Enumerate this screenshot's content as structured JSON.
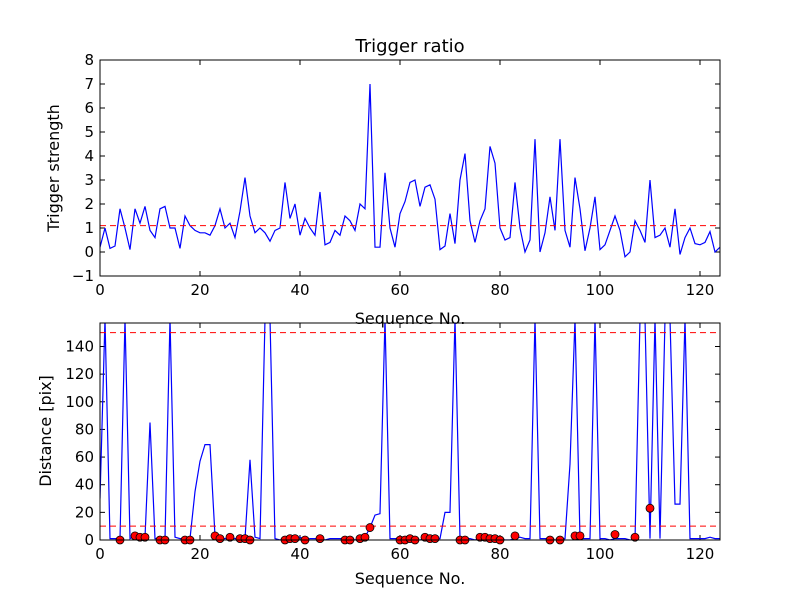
{
  "chart_data": [
    {
      "type": "line",
      "title": "Trigger ratio",
      "xlabel": "Sequence No.",
      "ylabel": "Trigger strength",
      "xlim": [
        0,
        124
      ],
      "ylim": [
        -1,
        8
      ],
      "x_ticks": [
        "0",
        "20",
        "40",
        "60",
        "80",
        "100",
        "120"
      ],
      "y_ticks": [
        "−1",
        "0",
        "1",
        "2",
        "3",
        "4",
        "5",
        "6",
        "7",
        "8"
      ],
      "threshold": 1.1,
      "line_color": "#0000ff",
      "threshold_color": "#ff0000",
      "series": [
        {
          "x": [
            0,
            1,
            2,
            3,
            4,
            5,
            6,
            7,
            8,
            9,
            10,
            11,
            12,
            13,
            14,
            15,
            16,
            17,
            18,
            19,
            20,
            21,
            22,
            23,
            24,
            25,
            26,
            27,
            28,
            29,
            30,
            31,
            32,
            33,
            34,
            35,
            36,
            37,
            38,
            39,
            40,
            41,
            42,
            43,
            44,
            45,
            46,
            47,
            48,
            49,
            50,
            51,
            52,
            53,
            54,
            55,
            56,
            57,
            58,
            59,
            60,
            61,
            62,
            63,
            64,
            65,
            66,
            67,
            68,
            69,
            70,
            71,
            72,
            73,
            74,
            75,
            76,
            77,
            78,
            79,
            80,
            81,
            82,
            83,
            84,
            85,
            86,
            87,
            88,
            89,
            90,
            91,
            92,
            93,
            94,
            95,
            96,
            97,
            98,
            99,
            100,
            101,
            102,
            103,
            104,
            105,
            106,
            107,
            108,
            109,
            110,
            111,
            112,
            113,
            114,
            115,
            116,
            117,
            118,
            119,
            120,
            121,
            122,
            123,
            124
          ],
          "y": [
            0.2,
            1.0,
            0.15,
            0.25,
            1.8,
            1.0,
            0.1,
            1.8,
            1.2,
            1.9,
            0.9,
            0.6,
            1.8,
            1.9,
            1.0,
            1.0,
            0.15,
            1.5,
            1.1,
            0.9,
            0.8,
            0.8,
            0.7,
            1.1,
            1.8,
            1.0,
            1.2,
            0.6,
            1.7,
            3.1,
            1.5,
            0.8,
            1.0,
            0.8,
            0.45,
            0.9,
            1.0,
            2.9,
            1.4,
            2.0,
            0.7,
            1.4,
            1.0,
            0.7,
            2.5,
            0.3,
            0.4,
            0.9,
            0.7,
            1.5,
            1.3,
            0.9,
            2.0,
            1.8,
            7.0,
            0.2,
            0.2,
            3.3,
            1.0,
            0.2,
            1.6,
            2.1,
            2.9,
            3.0,
            1.9,
            2.7,
            2.8,
            2.2,
            0.1,
            0.25,
            1.6,
            0.35,
            3.0,
            4.1,
            1.3,
            0.4,
            1.3,
            1.8,
            4.4,
            3.7,
            1.0,
            0.5,
            0.6,
            2.9,
            1.0,
            0.0,
            0.5,
            4.7,
            0.0,
            0.8,
            2.3,
            0.9,
            4.7,
            0.9,
            0.2,
            3.1,
            1.8,
            0.05,
            1.0,
            2.3,
            0.1,
            0.3,
            0.9,
            1.5,
            0.9,
            -0.2,
            0.0,
            1.3,
            0.9,
            0.4,
            3.0,
            0.6,
            0.7,
            1.0,
            0.2,
            1.8,
            -0.1,
            0.6,
            1.0,
            0.35,
            0.3,
            0.4,
            0.85,
            0.0,
            0.2
          ]
        }
      ]
    },
    {
      "type": "line",
      "title": "",
      "xlabel": "Sequence No.",
      "ylabel": "Distance [pix]",
      "xlim": [
        0,
        124
      ],
      "ylim": [
        0,
        157
      ],
      "x_ticks": [
        "0",
        "20",
        "40",
        "60",
        "80",
        "100",
        "120"
      ],
      "y_ticks": [
        "0",
        "20",
        "40",
        "60",
        "80",
        "100",
        "120",
        "140"
      ],
      "thresholds": [
        10,
        150
      ],
      "line_color": "#0000ff",
      "threshold_color": "#ff0000",
      "marker_color": "#ff0000",
      "series": [
        {
          "x": [
            0,
            1,
            2,
            3,
            4,
            5,
            6,
            7,
            8,
            9,
            10,
            11,
            12,
            13,
            14,
            15,
            16,
            17,
            18,
            19,
            20,
            21,
            22,
            23,
            24,
            25,
            26,
            27,
            28,
            29,
            30,
            31,
            32,
            33,
            34,
            35,
            36,
            37,
            38,
            39,
            40,
            41,
            42,
            43,
            44,
            45,
            46,
            47,
            48,
            49,
            50,
            51,
            52,
            53,
            54,
            55,
            56,
            57,
            58,
            59,
            60,
            61,
            62,
            63,
            64,
            65,
            66,
            67,
            68,
            69,
            70,
            71,
            72,
            73,
            74,
            75,
            76,
            77,
            78,
            79,
            80,
            81,
            82,
            83,
            84,
            85,
            86,
            87,
            88,
            89,
            90,
            91,
            92,
            93,
            94,
            95,
            96,
            97,
            98,
            99,
            100,
            101,
            102,
            103,
            104,
            105,
            106,
            107,
            108,
            109,
            110,
            111,
            112,
            113,
            114,
            115,
            116,
            117,
            118,
            119,
            120,
            121,
            122,
            123,
            124
          ],
          "y": [
            30,
            160,
            1,
            1,
            1,
            160,
            1,
            3,
            2,
            2,
            85,
            1,
            1,
            1,
            160,
            2,
            1,
            1,
            1,
            35,
            57,
            69,
            69,
            3,
            1,
            1,
            2,
            1,
            1,
            1,
            58,
            2,
            1,
            160,
            160,
            1,
            0,
            1,
            1,
            2,
            2,
            0,
            1,
            1,
            1,
            0,
            1,
            1,
            1,
            1,
            1,
            0,
            1,
            2,
            9,
            18,
            19,
            160,
            1,
            1,
            1,
            1,
            1,
            0,
            0,
            1,
            2,
            1,
            1,
            20,
            20,
            160,
            1,
            1,
            1,
            0,
            1,
            2,
            1,
            1,
            1,
            0,
            0,
            1,
            2,
            1,
            1,
            160,
            1,
            1,
            1,
            0,
            0,
            1,
            55,
            160,
            1,
            1,
            1,
            160,
            1,
            1,
            0,
            1,
            1,
            1,
            0,
            0,
            160,
            160,
            1,
            160,
            1,
            160,
            160,
            26,
            26,
            160,
            1,
            1,
            1,
            1,
            2,
            1,
            1
          ]
        }
      ],
      "markers": {
        "x": [
          4,
          7,
          8,
          9,
          12,
          13,
          17,
          18,
          23,
          24,
          26,
          28,
          29,
          30,
          37,
          38,
          39,
          41,
          44,
          49,
          50,
          52,
          53,
          54,
          60,
          61,
          62,
          63,
          65,
          66,
          67,
          72,
          73,
          76,
          77,
          78,
          79,
          80,
          83,
          90,
          92,
          95,
          96,
          103,
          107,
          110
        ],
        "y": [
          0,
          3,
          2,
          2,
          0,
          0,
          0,
          0,
          3,
          1,
          2,
          1,
          1,
          0,
          0,
          1,
          1,
          0,
          1,
          0,
          0,
          1,
          2,
          9,
          0,
          0,
          1,
          0,
          2,
          1,
          1,
          0,
          0,
          2,
          2,
          1,
          1,
          0,
          3,
          0,
          0,
          3,
          3,
          4,
          2,
          23
        ]
      }
    }
  ]
}
